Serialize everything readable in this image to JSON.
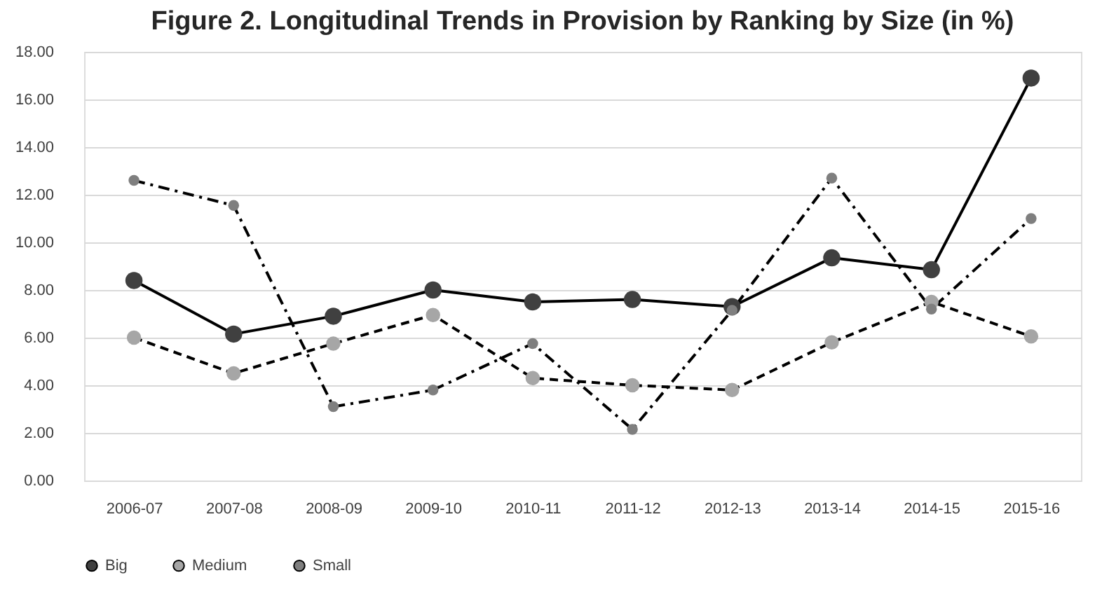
{
  "chart_data": {
    "type": "line",
    "title": "Figure 2. Longitudinal Trends in Provision by Ranking by Size (in %)",
    "categories": [
      "2006-07",
      "2007-08",
      "2008-09",
      "2009-10",
      "2010-11",
      "2011-12",
      "2012-13",
      "2013-14",
      "2014-15",
      "2015-16"
    ],
    "series": [
      {
        "name": "Big",
        "color": "#404040",
        "line_style": "solid",
        "values": [
          8.4,
          6.15,
          6.9,
          8.0,
          7.5,
          7.6,
          7.3,
          9.35,
          8.85,
          16.9
        ]
      },
      {
        "name": "Medium",
        "color": "#a6a6a6",
        "line_style": "dashed",
        "values": [
          6.0,
          4.5,
          5.75,
          6.95,
          4.3,
          4.0,
          3.8,
          5.8,
          7.5,
          6.05
        ]
      },
      {
        "name": "Small",
        "color": "#7f7f7f",
        "line_style": "dashdot",
        "values": [
          12.6,
          11.55,
          3.1,
          3.8,
          5.75,
          2.15,
          7.15,
          12.7,
          7.2,
          11.0
        ]
      }
    ],
    "ylim": [
      0,
      18
    ],
    "yticks": [
      {
        "value": 0,
        "label": "0.00"
      },
      {
        "value": 2,
        "label": "2.00"
      },
      {
        "value": 4,
        "label": "4.00"
      },
      {
        "value": 6,
        "label": "6.00"
      },
      {
        "value": 8,
        "label": "8.00"
      },
      {
        "value": 10,
        "label": "10.00"
      },
      {
        "value": 12,
        "label": "12.00"
      },
      {
        "value": 14,
        "label": "14.00"
      },
      {
        "value": 16,
        "label": "16.00"
      },
      {
        "value": 18,
        "label": "18.00"
      }
    ],
    "grid": "y",
    "legend": "bottom",
    "marker": "circle"
  }
}
